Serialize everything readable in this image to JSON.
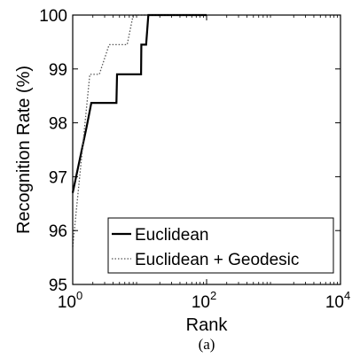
{
  "chart_data": {
    "type": "line",
    "xlabel": "Rank",
    "ylabel": "Recognition Rate (%)",
    "caption": "(a)",
    "x_scale": "log",
    "xlim": [
      1,
      10000
    ],
    "ylim": [
      95,
      100
    ],
    "x_ticks": [
      {
        "value": 1,
        "base": "10",
        "exp": "0"
      },
      {
        "value": 100,
        "base": "10",
        "exp": "2"
      },
      {
        "value": 10000,
        "base": "10",
        "exp": "4"
      }
    ],
    "y_ticks": [
      95,
      96,
      97,
      98,
      99,
      100
    ],
    "grid": false,
    "legend": "bottom-right",
    "series": [
      {
        "name": "Euclidean",
        "style": "solid",
        "color": "#000000",
        "points": [
          [
            1,
            96.7
          ],
          [
            1.6,
            97.9
          ],
          [
            1.9,
            98.37
          ],
          [
            3.2,
            98.37
          ],
          [
            3.2,
            98.37
          ],
          [
            4.5,
            98.37
          ],
          [
            4.6,
            98.9
          ],
          [
            10.5,
            98.9
          ],
          [
            10.6,
            99.45
          ],
          [
            12.5,
            99.45
          ],
          [
            13.5,
            100
          ],
          [
            100,
            100
          ]
        ]
      },
      {
        "name": "Euclidean + Geodesic",
        "style": "dotted",
        "color": "#555555",
        "points": [
          [
            1,
            95.7
          ],
          [
            1.5,
            97.9
          ],
          [
            1.8,
            98.9
          ],
          [
            2.5,
            98.9
          ],
          [
            3.5,
            99.45
          ],
          [
            6.5,
            99.45
          ],
          [
            8.0,
            100
          ],
          [
            100,
            100
          ]
        ]
      }
    ]
  }
}
